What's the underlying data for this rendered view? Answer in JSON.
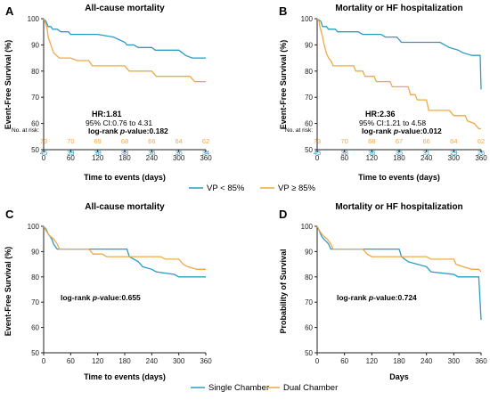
{
  "colors": {
    "blue": "#2b9cc1",
    "orange": "#f0a847",
    "axis": "#222222"
  },
  "legends": [
    {
      "items": [
        "VP < 85%",
        "VP ≥ 85%"
      ]
    },
    {
      "items": [
        "Single Chamber",
        "Dual Chamber"
      ]
    }
  ],
  "chart_data": [
    {
      "panel_letter": "A",
      "type": "line",
      "title": "All-cause mortality",
      "xlabel": "Time to events (days)",
      "ylabel": "Event-Free Survival (%)",
      "xlim": [
        0,
        360
      ],
      "ylim": [
        50,
        100
      ],
      "xticks": [
        0,
        60,
        120,
        180,
        240,
        300,
        360
      ],
      "yticks": [
        50,
        60,
        70,
        80,
        90,
        100
      ],
      "annotation": {
        "line1": "HR:1.81",
        "line2": "95% CI:0.76 to 4.31",
        "line3_prefix": "log-rank ",
        "line3_p": "p",
        "line3_suffix": "-value:0.182"
      },
      "risk_table": {
        "title": "No. at risk:",
        "rows": [
          {
            "color": "orange",
            "values": [
              "73",
              "70",
              "69",
              "68",
              "66",
              "64",
              "62"
            ]
          },
          {
            "color": "blue",
            "values": [
              "45",
              "39",
              "38",
              "38",
              "36",
              "36",
              "34"
            ]
          }
        ]
      },
      "series": [
        {
          "name": "VP < 85%",
          "color": "blue",
          "points": [
            [
              0,
              100
            ],
            [
              5,
              99
            ],
            [
              10,
              97
            ],
            [
              16,
              97
            ],
            [
              20,
              96
            ],
            [
              30,
              96
            ],
            [
              38,
              95
            ],
            [
              55,
              95
            ],
            [
              60,
              94
            ],
            [
              120,
              94
            ],
            [
              155,
              93
            ],
            [
              180,
              91
            ],
            [
              185,
              90
            ],
            [
              200,
              90
            ],
            [
              210,
              89
            ],
            [
              240,
              89
            ],
            [
              248,
              88
            ],
            [
              300,
              88
            ],
            [
              315,
              86
            ],
            [
              330,
              85
            ],
            [
              360,
              85
            ]
          ]
        },
        {
          "name": "VP ≥ 85%",
          "color": "orange",
          "points": [
            [
              0,
              100
            ],
            [
              5,
              98
            ],
            [
              8,
              96
            ],
            [
              10,
              93
            ],
            [
              14,
              91
            ],
            [
              18,
              89
            ],
            [
              22,
              87
            ],
            [
              28,
              86
            ],
            [
              35,
              85
            ],
            [
              60,
              85
            ],
            [
              75,
              84
            ],
            [
              100,
              84
            ],
            [
              108,
              82
            ],
            [
              180,
              82
            ],
            [
              190,
              80
            ],
            [
              240,
              80
            ],
            [
              250,
              78
            ],
            [
              325,
              78
            ],
            [
              335,
              76
            ],
            [
              360,
              76
            ]
          ]
        }
      ]
    },
    {
      "panel_letter": "B",
      "type": "line",
      "title": "Mortality or HF hospitalization",
      "xlabel": "Time to events (days)",
      "ylabel": "Event-Free Survival (%)",
      "xlim": [
        0,
        360
      ],
      "ylim": [
        50,
        100
      ],
      "xticks": [
        0,
        60,
        120,
        180,
        240,
        300,
        360
      ],
      "yticks": [
        50,
        60,
        70,
        80,
        90,
        100
      ],
      "annotation": {
        "line1": "HR:2.36",
        "line2": "95% CI:1.21 to 4.58",
        "line3_prefix": "log-rank ",
        "line3_p": "p",
        "line3_suffix": "-value:0.012"
      },
      "risk_table": {
        "title": "No. at risk:",
        "rows": [
          {
            "color": "orange",
            "values": [
              "73",
              "70",
              "68",
              "67",
              "66",
              "64",
              "62"
            ]
          },
          {
            "color": "blue",
            "values": [
              "45",
              "38",
              "36",
              "35",
              "31",
              "29",
              "26"
            ]
          }
        ]
      },
      "series": [
        {
          "name": "VP < 85%",
          "color": "blue",
          "points": [
            [
              0,
              100
            ],
            [
              8,
              99
            ],
            [
              12,
              97
            ],
            [
              20,
              97
            ],
            [
              25,
              96
            ],
            [
              40,
              96
            ],
            [
              45,
              95
            ],
            [
              90,
              95
            ],
            [
              100,
              94
            ],
            [
              140,
              94
            ],
            [
              150,
              93
            ],
            [
              175,
              93
            ],
            [
              185,
              91
            ],
            [
              270,
              91
            ],
            [
              290,
              89
            ],
            [
              310,
              88
            ],
            [
              320,
              87
            ],
            [
              340,
              86
            ],
            [
              358,
              86
            ],
            [
              360,
              73
            ]
          ]
        },
        {
          "name": "VP ≥ 85%",
          "color": "orange",
          "points": [
            [
              0,
              100
            ],
            [
              4,
              99
            ],
            [
              6,
              97
            ],
            [
              9,
              95
            ],
            [
              12,
              93
            ],
            [
              14,
              91
            ],
            [
              17,
              89
            ],
            [
              20,
              87
            ],
            [
              25,
              85
            ],
            [
              30,
              84
            ],
            [
              35,
              82
            ],
            [
              80,
              82
            ],
            [
              85,
              80
            ],
            [
              100,
              80
            ],
            [
              105,
              78
            ],
            [
              125,
              78
            ],
            [
              130,
              76
            ],
            [
              160,
              76
            ],
            [
              165,
              74
            ],
            [
              200,
              74
            ],
            [
              205,
              71
            ],
            [
              215,
              71
            ],
            [
              220,
              69
            ],
            [
              240,
              69
            ],
            [
              245,
              65
            ],
            [
              290,
              65
            ],
            [
              300,
              63
            ],
            [
              325,
              63
            ],
            [
              330,
              61
            ],
            [
              345,
              60
            ],
            [
              355,
              58
            ],
            [
              360,
              58
            ]
          ]
        }
      ]
    },
    {
      "panel_letter": "C",
      "type": "line",
      "title": "All-cause mortality",
      "xlabel": "Time to events (days)",
      "ylabel": "Event-Free Survival (%)",
      "xlim": [
        0,
        360
      ],
      "ylim": [
        50,
        100
      ],
      "xticks": [
        0,
        60,
        120,
        180,
        240,
        300,
        360
      ],
      "yticks": [
        50,
        60,
        70,
        80,
        90,
        100
      ],
      "annotation": {
        "line1": "",
        "line2": "",
        "line3_prefix": "log-rank ",
        "line3_p": "p",
        "line3_suffix": "-value:0.655"
      },
      "series": [
        {
          "name": "Single Chamber",
          "color": "blue",
          "points": [
            [
              0,
              100
            ],
            [
              5,
              99
            ],
            [
              10,
              97
            ],
            [
              14,
              96
            ],
            [
              18,
              95
            ],
            [
              22,
              93
            ],
            [
              30,
              91
            ],
            [
              60,
              91
            ],
            [
              120,
              91
            ],
            [
              185,
              91
            ],
            [
              190,
              88
            ],
            [
              210,
              86
            ],
            [
              220,
              84
            ],
            [
              240,
              83
            ],
            [
              250,
              82
            ],
            [
              290,
              81
            ],
            [
              300,
              80
            ],
            [
              360,
              80
            ]
          ]
        },
        {
          "name": "Dual Chamber",
          "color": "orange",
          "points": [
            [
              0,
              100
            ],
            [
              6,
              98
            ],
            [
              10,
              97
            ],
            [
              15,
              96
            ],
            [
              22,
              95
            ],
            [
              30,
              93
            ],
            [
              35,
              91
            ],
            [
              100,
              91
            ],
            [
              110,
              89
            ],
            [
              130,
              89
            ],
            [
              140,
              88
            ],
            [
              260,
              88
            ],
            [
              270,
              87
            ],
            [
              300,
              87
            ],
            [
              310,
              85
            ],
            [
              320,
              84
            ],
            [
              340,
              83
            ],
            [
              360,
              83
            ]
          ]
        }
      ]
    },
    {
      "panel_letter": "D",
      "type": "line",
      "title": "Mortality or HF hospitalization",
      "xlabel": "Days",
      "ylabel": "Probability of Survival",
      "xlim": [
        0,
        360
      ],
      "ylim": [
        50,
        100
      ],
      "xticks": [
        0,
        60,
        120,
        180,
        240,
        300,
        360
      ],
      "yticks": [
        50,
        60,
        70,
        80,
        90,
        100
      ],
      "annotation": {
        "line1": "",
        "line2": "",
        "line3_prefix": "log-rank ",
        "line3_p": "p",
        "line3_suffix": "-value:0.724"
      },
      "series": [
        {
          "name": "Single Chamber",
          "color": "blue",
          "points": [
            [
              0,
              100
            ],
            [
              5,
              98
            ],
            [
              10,
              96
            ],
            [
              14,
              95
            ],
            [
              20,
              94
            ],
            [
              25,
              93
            ],
            [
              30,
              91
            ],
            [
              120,
              91
            ],
            [
              180,
              91
            ],
            [
              185,
              88
            ],
            [
              200,
              86
            ],
            [
              240,
              84
            ],
            [
              250,
              82
            ],
            [
              300,
              81
            ],
            [
              310,
              80
            ],
            [
              355,
              80
            ],
            [
              360,
              63
            ]
          ]
        },
        {
          "name": "Dual Chamber",
          "color": "orange",
          "points": [
            [
              0,
              100
            ],
            [
              6,
              98
            ],
            [
              10,
              97
            ],
            [
              15,
              96
            ],
            [
              22,
              95
            ],
            [
              30,
              93
            ],
            [
              35,
              91
            ],
            [
              100,
              91
            ],
            [
              110,
              89
            ],
            [
              120,
              88
            ],
            [
              240,
              88
            ],
            [
              250,
              87
            ],
            [
              300,
              87
            ],
            [
              305,
              85
            ],
            [
              320,
              84
            ],
            [
              340,
              83
            ],
            [
              355,
              83
            ],
            [
              360,
              82
            ]
          ]
        }
      ]
    }
  ]
}
